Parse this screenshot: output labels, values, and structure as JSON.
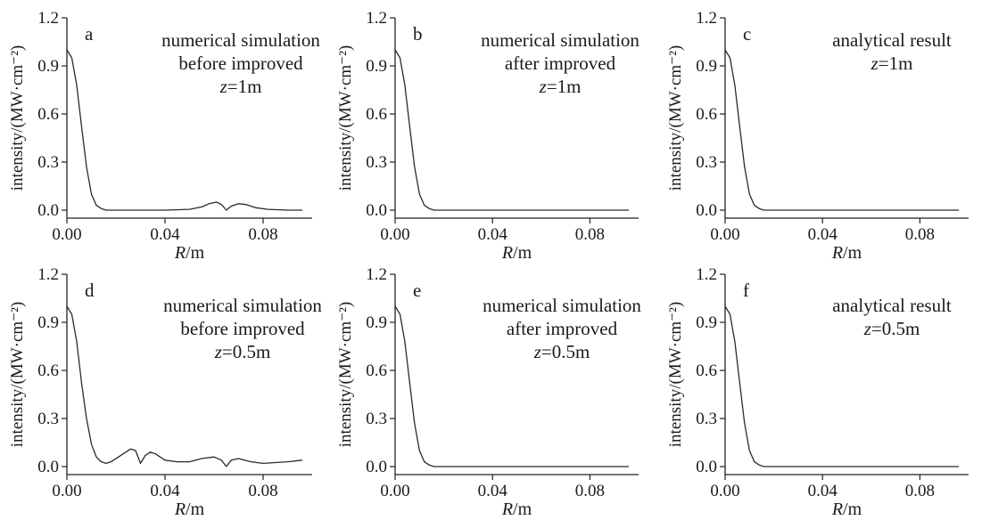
{
  "chart_data": [
    {
      "type": "line",
      "panel_label": "a",
      "annotation": [
        "numerical simulation",
        "before improved",
        "z=1m"
      ],
      "xlabel": "R/m",
      "ylabel": "intensity/(MW·cm⁻²)",
      "xlim": [
        0,
        0.1
      ],
      "ylim": [
        -0.05,
        1.2
      ],
      "xticks": [
        "0.00",
        "0.04",
        "0.08"
      ],
      "yticks": [
        "0.0",
        "0.3",
        "0.6",
        "0.9",
        "1.2"
      ],
      "x": [
        0,
        0.002,
        0.004,
        0.006,
        0.008,
        0.01,
        0.012,
        0.014,
        0.016,
        0.02,
        0.03,
        0.04,
        0.05,
        0.055,
        0.058,
        0.061,
        0.063,
        0.065,
        0.067,
        0.07,
        0.073,
        0.077,
        0.082,
        0.09,
        0.096
      ],
      "y": [
        1.0,
        0.95,
        0.78,
        0.52,
        0.27,
        0.1,
        0.03,
        0.01,
        0.0,
        0.0,
        0.0,
        0.0,
        0.005,
        0.02,
        0.04,
        0.05,
        0.035,
        0.0,
        0.025,
        0.04,
        0.035,
        0.015,
        0.005,
        0.0,
        0.0
      ]
    },
    {
      "type": "line",
      "panel_label": "b",
      "annotation": [
        "numerical simulation",
        "after improved",
        "z=1m"
      ],
      "xlabel": "R/m",
      "ylabel": "intensity/(MW·cm⁻²)",
      "xlim": [
        0,
        0.1
      ],
      "ylim": [
        -0.05,
        1.2
      ],
      "xticks": [
        "0.00",
        "0.04",
        "0.08"
      ],
      "yticks": [
        "0.0",
        "0.3",
        "0.6",
        "0.9",
        "1.2"
      ],
      "x": [
        0,
        0.002,
        0.004,
        0.006,
        0.008,
        0.01,
        0.012,
        0.014,
        0.016,
        0.02,
        0.04,
        0.06,
        0.08,
        0.096
      ],
      "y": [
        1.0,
        0.95,
        0.78,
        0.52,
        0.27,
        0.1,
        0.03,
        0.01,
        0.0,
        0.0,
        0.0,
        0.0,
        0.0,
        0.0
      ]
    },
    {
      "type": "line",
      "panel_label": "c",
      "annotation": [
        "analytical result",
        "z=1m"
      ],
      "xlabel": "R/m",
      "ylabel": "intensity/(MW·cm⁻²)",
      "xlim": [
        0,
        0.1
      ],
      "ylim": [
        -0.05,
        1.2
      ],
      "xticks": [
        "0.00",
        "0.04",
        "0.08"
      ],
      "yticks": [
        "0.0",
        "0.3",
        "0.6",
        "0.9",
        "1.2"
      ],
      "x": [
        0,
        0.002,
        0.004,
        0.006,
        0.008,
        0.01,
        0.012,
        0.014,
        0.016,
        0.02,
        0.04,
        0.06,
        0.08,
        0.096
      ],
      "y": [
        1.0,
        0.95,
        0.78,
        0.52,
        0.27,
        0.1,
        0.03,
        0.01,
        0.0,
        0.0,
        0.0,
        0.0,
        0.0,
        0.0
      ]
    },
    {
      "type": "line",
      "panel_label": "d",
      "annotation": [
        "numerical simulation",
        "before improved",
        "z=0.5m"
      ],
      "xlabel": "R/m",
      "ylabel": "intensity/(MW·cm⁻²)",
      "xlim": [
        0,
        0.1
      ],
      "ylim": [
        -0.05,
        1.2
      ],
      "xticks": [
        "0.00",
        "0.04",
        "0.08"
      ],
      "yticks": [
        "0.0",
        "0.3",
        "0.6",
        "0.9",
        "1.2"
      ],
      "x": [
        0,
        0.002,
        0.004,
        0.006,
        0.008,
        0.01,
        0.012,
        0.014,
        0.016,
        0.018,
        0.022,
        0.026,
        0.028,
        0.03,
        0.032,
        0.034,
        0.036,
        0.04,
        0.045,
        0.05,
        0.055,
        0.06,
        0.063,
        0.065,
        0.067,
        0.07,
        0.075,
        0.08,
        0.085,
        0.09,
        0.096
      ],
      "y": [
        1.0,
        0.95,
        0.78,
        0.52,
        0.3,
        0.14,
        0.06,
        0.03,
        0.02,
        0.03,
        0.07,
        0.11,
        0.1,
        0.02,
        0.07,
        0.09,
        0.08,
        0.04,
        0.03,
        0.03,
        0.05,
        0.06,
        0.04,
        0.0,
        0.04,
        0.05,
        0.03,
        0.02,
        0.025,
        0.03,
        0.04
      ]
    },
    {
      "type": "line",
      "panel_label": "e",
      "annotation": [
        "numerical simulation",
        "after improved",
        "z=0.5m"
      ],
      "xlabel": "R/m",
      "ylabel": "intensity/(MW·cm⁻²)",
      "xlim": [
        0,
        0.1
      ],
      "ylim": [
        -0.05,
        1.2
      ],
      "xticks": [
        "0.00",
        "0.04",
        "0.08"
      ],
      "yticks": [
        "0.0",
        "0.3",
        "0.6",
        "0.9",
        "1.2"
      ],
      "x": [
        0,
        0.002,
        0.004,
        0.006,
        0.008,
        0.01,
        0.012,
        0.014,
        0.016,
        0.02,
        0.04,
        0.06,
        0.08,
        0.096
      ],
      "y": [
        1.0,
        0.95,
        0.78,
        0.52,
        0.27,
        0.1,
        0.03,
        0.01,
        0.0,
        0.0,
        0.0,
        0.0,
        0.0,
        0.0
      ]
    },
    {
      "type": "line",
      "panel_label": "f",
      "annotation": [
        "analytical result",
        "z=0.5m"
      ],
      "xlabel": "R/m",
      "ylabel": "intensity/(MW·cm⁻²)",
      "xlim": [
        0,
        0.1
      ],
      "ylim": [
        -0.05,
        1.2
      ],
      "xticks": [
        "0.00",
        "0.04",
        "0.08"
      ],
      "yticks": [
        "0.0",
        "0.3",
        "0.6",
        "0.9",
        "1.2"
      ],
      "x": [
        0,
        0.002,
        0.004,
        0.006,
        0.008,
        0.01,
        0.012,
        0.014,
        0.016,
        0.02,
        0.04,
        0.06,
        0.08,
        0.096
      ],
      "y": [
        1.0,
        0.95,
        0.78,
        0.52,
        0.27,
        0.1,
        0.03,
        0.01,
        0.0,
        0.0,
        0.0,
        0.0,
        0.0,
        0.0
      ]
    }
  ]
}
